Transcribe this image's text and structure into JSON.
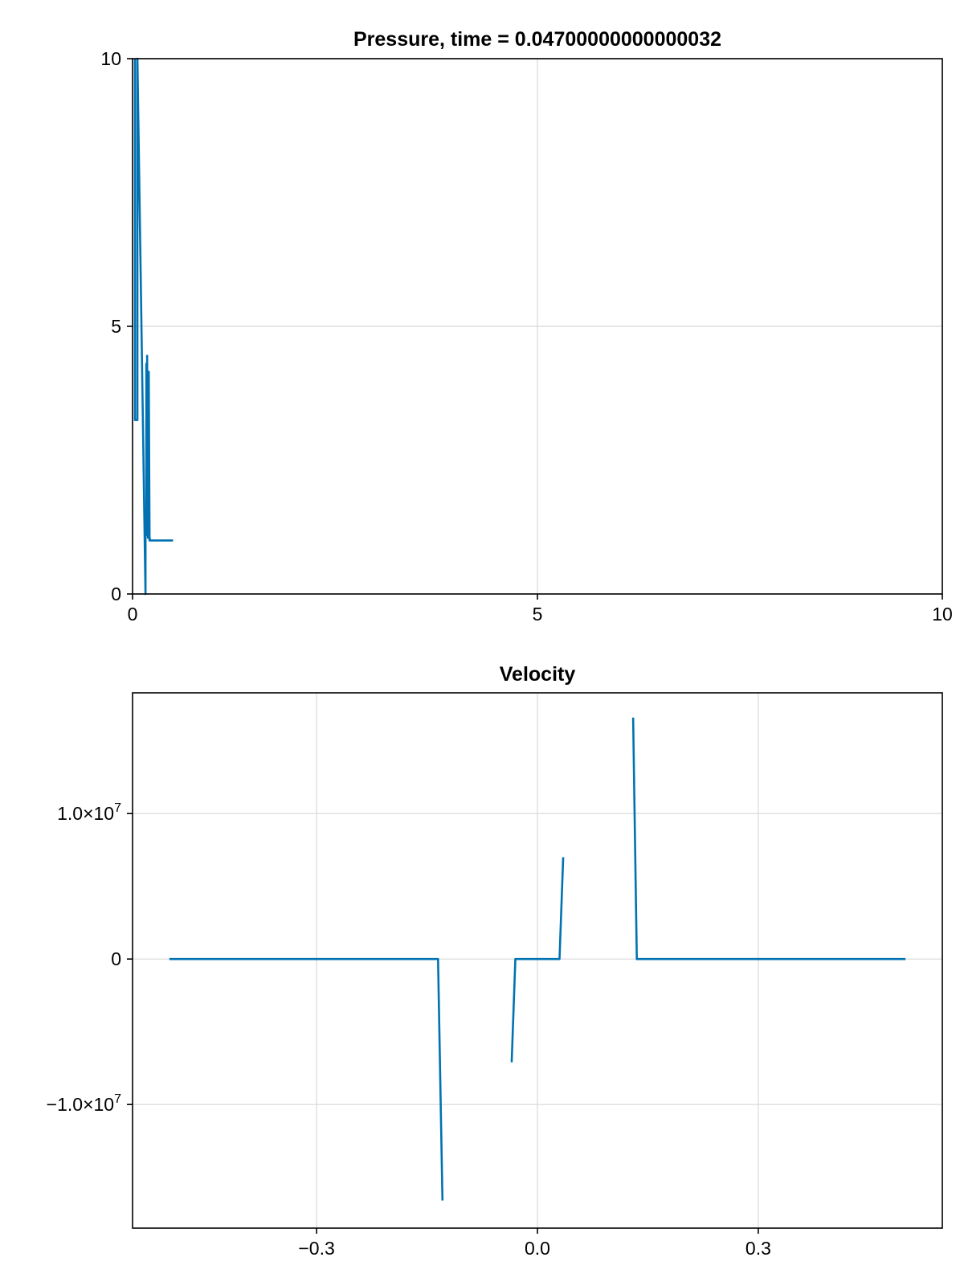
{
  "chart_data": [
    {
      "type": "line",
      "title": "Pressure, time = 0.04700000000000032",
      "xlabel": "",
      "ylabel": "",
      "xlim": [
        0,
        10
      ],
      "ylim": [
        0,
        10
      ],
      "xticks": [
        0,
        5,
        10
      ],
      "xtick_labels": [
        "0",
        "5",
        "10"
      ],
      "yticks": [
        0,
        5,
        10
      ],
      "ytick_labels": [
        "0",
        "5",
        "10"
      ],
      "grid": true,
      "color": "#0072b2",
      "series": [
        {
          "x": [
            0.03,
            0.03,
            0.06,
            0.06,
            0.16,
            0.16,
            0.17,
            0.17,
            0.18,
            0.18,
            0.19,
            0.19,
            0.2,
            0.2,
            0.21,
            0.21,
            0.22,
            0.22,
            0.5
          ],
          "y": [
            10,
            3.25,
            3.25,
            10,
            0,
            1.4,
            1.4,
            4.3,
            1.1,
            4.45,
            1.05,
            3.5,
            1.1,
            4.15,
            1.0,
            1.05,
            1.0,
            1.0,
            1.0
          ]
        }
      ]
    },
    {
      "type": "line",
      "title": "Velocity",
      "xlabel": "",
      "ylabel": "",
      "xlim": [
        -0.55,
        0.55
      ],
      "ylim": [
        -18.5,
        18.3
      ],
      "y_unit_scale": 1000000,
      "xticks": [
        -0.3,
        0.0,
        0.3
      ],
      "xtick_labels": [
        "−0.3",
        "0.0",
        "0.3"
      ],
      "yticks": [
        -10,
        0,
        10
      ],
      "ytick_labels": [
        {
          "mantissa": "−1.0×10",
          "exp": "7"
        },
        {
          "mantissa": "0",
          "exp": ""
        },
        {
          "mantissa": "1.0×10",
          "exp": "7"
        }
      ],
      "grid": true,
      "color": "#0072b2",
      "series": [
        {
          "segments": [
            {
              "x": [
                -0.5,
                -0.135,
                -0.129
              ],
              "y": [
                0,
                0,
                -16.6
              ]
            },
            {
              "x": [
                -0.035,
                -0.03,
                0.03,
                0.035
              ],
              "y": [
                -7.1,
                0,
                0,
                7.0
              ]
            },
            {
              "x": [
                0.13,
                0.135,
                0.5
              ],
              "y": [
                16.6,
                0,
                0
              ]
            }
          ]
        }
      ]
    }
  ]
}
